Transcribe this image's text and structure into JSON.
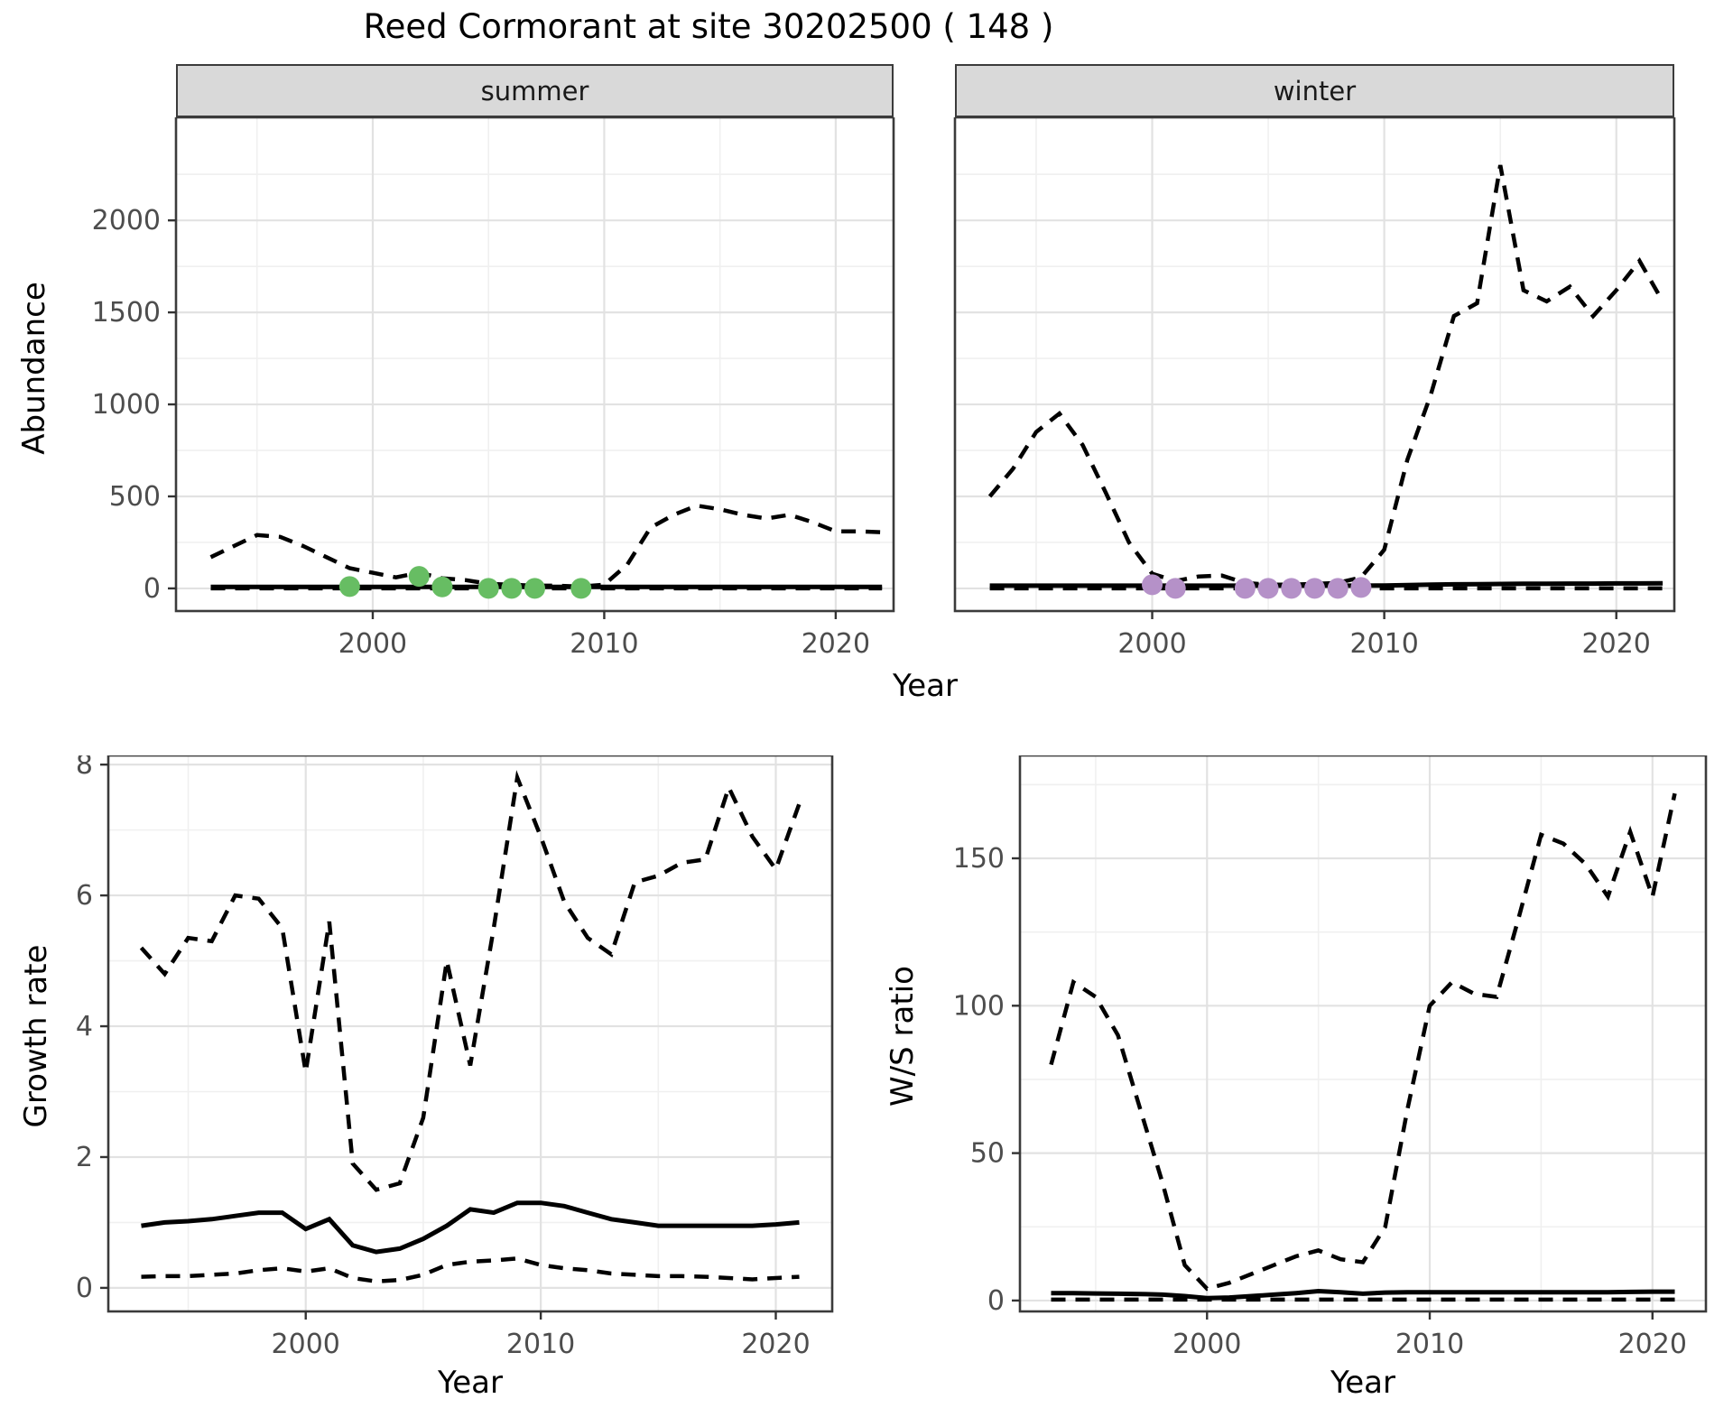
{
  "figure": {
    "title": "Reed Cormorant at site 30202500 ( 148 )",
    "background_color": "#ffffff",
    "line_color": "#000000",
    "grid_major_color": "#e2e2e2",
    "grid_minor_color": "#f0f0f0",
    "panel_border_color": "#3b3b3b",
    "strip_fill_color": "#d9d9d9",
    "tick_label_color": "#4d4d4d",
    "summer_point_color": "#67bd63",
    "winter_point_color": "#b591c8"
  },
  "chart_data": [
    {
      "id": "abundance-summer",
      "type": "line",
      "facet_label": "summer",
      "xlabel": "Year",
      "ylabel": "Abundance",
      "xlim": [
        1991.5,
        2022.5
      ],
      "ylim": [
        -123,
        2560
      ],
      "xticks": [
        2000,
        2010,
        2020
      ],
      "yticks": [
        0,
        500,
        1000,
        1500,
        2000
      ],
      "grid": true,
      "legend": "none",
      "x": [
        1993,
        1994,
        1995,
        1996,
        1997,
        1998,
        1999,
        2000,
        2001,
        2002,
        2003,
        2004,
        2005,
        2006,
        2007,
        2008,
        2009,
        2010,
        2011,
        2012,
        2013,
        2014,
        2015,
        2016,
        2017,
        2018,
        2019,
        2020,
        2021,
        2022
      ],
      "series": [
        {
          "name": "upper-95ci",
          "style": "dashed",
          "values": [
            170,
            230,
            290,
            280,
            230,
            170,
            110,
            85,
            60,
            85,
            55,
            45,
            25,
            20,
            15,
            15,
            10,
            20,
            130,
            330,
            400,
            450,
            430,
            400,
            380,
            400,
            360,
            310,
            310,
            305
          ]
        },
        {
          "name": "median",
          "style": "solid",
          "values": [
            8,
            8,
            8,
            8,
            8,
            8,
            8,
            8,
            8,
            8,
            8,
            8,
            8,
            8,
            8,
            8,
            8,
            8,
            8,
            8,
            8,
            8,
            8,
            8,
            8,
            8,
            8,
            8,
            8,
            8
          ]
        },
        {
          "name": "lower-95ci",
          "style": "dashed",
          "values": [
            0,
            0,
            0,
            0,
            0,
            0,
            0,
            0,
            0,
            0,
            0,
            0,
            0,
            0,
            0,
            0,
            0,
            0,
            0,
            0,
            0,
            0,
            0,
            0,
            0,
            0,
            0,
            0,
            0,
            0
          ]
        }
      ],
      "points": {
        "name": "observed-counts",
        "color_key": "summer_point_color",
        "x": [
          1999,
          2002,
          2003,
          2005,
          2006,
          2007,
          2009
        ],
        "y": [
          10,
          65,
          8,
          0,
          0,
          0,
          0
        ]
      }
    },
    {
      "id": "abundance-winter",
      "type": "line",
      "facet_label": "winter",
      "xlabel": "Year",
      "ylabel": "Abundance",
      "xlim": [
        1991.5,
        2022.5
      ],
      "ylim": [
        -123,
        2560
      ],
      "xticks": [
        2000,
        2010,
        2020
      ],
      "yticks": [
        0,
        500,
        1000,
        1500,
        2000
      ],
      "grid": true,
      "legend": "none",
      "x": [
        1993,
        1994,
        1995,
        1996,
        1997,
        1998,
        1999,
        2000,
        2001,
        2002,
        2003,
        2004,
        2005,
        2006,
        2007,
        2008,
        2009,
        2010,
        2011,
        2012,
        2013,
        2014,
        2015,
        2016,
        2017,
        2018,
        2019,
        2020,
        2021,
        2022
      ],
      "series": [
        {
          "name": "upper-95ci",
          "style": "dashed",
          "values": [
            500,
            650,
            850,
            950,
            780,
            520,
            250,
            80,
            40,
            65,
            70,
            30,
            20,
            20,
            25,
            30,
            60,
            210,
            700,
            1050,
            1480,
            1550,
            2300,
            1620,
            1560,
            1640,
            1480,
            1620,
            1780,
            1560
          ]
        },
        {
          "name": "median",
          "style": "solid",
          "values": [
            15,
            15,
            15,
            15,
            15,
            15,
            15,
            15,
            15,
            15,
            15,
            15,
            15,
            15,
            15,
            15,
            15,
            16,
            18,
            20,
            22,
            23,
            24,
            25,
            25,
            26,
            26,
            27,
            27,
            28
          ]
        },
        {
          "name": "lower-95ci",
          "style": "dashed",
          "values": [
            0,
            0,
            0,
            0,
            0,
            0,
            0,
            0,
            0,
            0,
            0,
            0,
            0,
            0,
            0,
            0,
            0,
            0,
            0,
            0,
            0,
            0,
            0,
            0,
            0,
            0,
            0,
            0,
            0,
            0
          ]
        }
      ],
      "points": {
        "name": "observed-counts",
        "color_key": "winter_point_color",
        "x": [
          2000,
          2001,
          2004,
          2005,
          2006,
          2007,
          2008,
          2009
        ],
        "y": [
          20,
          0,
          0,
          0,
          0,
          0,
          0,
          5
        ]
      }
    },
    {
      "id": "growth-rate",
      "type": "line",
      "facet_label": "",
      "xlabel": "Year",
      "ylabel": "Growth rate",
      "xlim": [
        1991.6,
        2022.4
      ],
      "ylim": [
        -0.36,
        8.14
      ],
      "xticks": [
        2000,
        2010,
        2020
      ],
      "yticks": [
        0,
        2,
        4,
        6,
        8
      ],
      "grid": true,
      "legend": "none",
      "x": [
        1993,
        1994,
        1995,
        1996,
        1997,
        1998,
        1999,
        2000,
        2001,
        2002,
        2003,
        2004,
        2005,
        2006,
        2007,
        2008,
        2009,
        2010,
        2011,
        2012,
        2013,
        2014,
        2015,
        2016,
        2017,
        2018,
        2019,
        2020,
        2021
      ],
      "series": [
        {
          "name": "upper-95ci",
          "style": "dashed",
          "values": [
            5.2,
            4.8,
            5.35,
            5.3,
            6.0,
            5.95,
            5.5,
            3.3,
            5.6,
            1.9,
            1.5,
            1.6,
            2.6,
            5.0,
            3.4,
            5.5,
            7.8,
            6.9,
            5.9,
            5.35,
            5.1,
            6.2,
            6.3,
            6.5,
            6.55,
            7.65,
            6.9,
            6.4,
            7.4
          ]
        },
        {
          "name": "median",
          "style": "solid",
          "values": [
            0.95,
            1.0,
            1.02,
            1.05,
            1.1,
            1.15,
            1.15,
            0.9,
            1.05,
            0.65,
            0.55,
            0.6,
            0.75,
            0.95,
            1.2,
            1.15,
            1.3,
            1.3,
            1.25,
            1.15,
            1.05,
            1.0,
            0.95,
            0.95,
            0.95,
            0.95,
            0.95,
            0.97,
            1.0
          ]
        },
        {
          "name": "lower-95ci",
          "style": "dashed",
          "values": [
            0.17,
            0.18,
            0.18,
            0.2,
            0.22,
            0.27,
            0.3,
            0.25,
            0.3,
            0.15,
            0.1,
            0.12,
            0.2,
            0.35,
            0.4,
            0.42,
            0.45,
            0.35,
            0.3,
            0.27,
            0.22,
            0.2,
            0.18,
            0.18,
            0.17,
            0.15,
            0.13,
            0.15,
            0.17
          ]
        }
      ],
      "points": null
    },
    {
      "id": "ws-ratio",
      "type": "line",
      "facet_label": "",
      "xlabel": "Year",
      "ylabel": "W/S ratio",
      "xlim": [
        1991.6,
        2022.4
      ],
      "ylim": [
        -3.7,
        184.9
      ],
      "xticks": [
        2000,
        2010,
        2020
      ],
      "yticks": [
        0,
        50,
        100,
        150
      ],
      "grid": true,
      "legend": "none",
      "x": [
        1993,
        1994,
        1995,
        1996,
        1997,
        1998,
        1999,
        2000,
        2001,
        2002,
        2003,
        2004,
        2005,
        2006,
        2007,
        2008,
        2009,
        2010,
        2011,
        2012,
        2013,
        2014,
        2015,
        2016,
        2017,
        2018,
        2019,
        2020,
        2021
      ],
      "series": [
        {
          "name": "upper-95ci",
          "style": "dashed",
          "values": [
            80,
            108,
            103,
            90,
            65,
            40,
            12,
            4,
            6,
            9,
            12,
            15,
            17,
            14,
            13,
            25,
            65,
            100,
            108,
            104,
            103,
            130,
            158,
            155,
            148,
            137,
            159,
            137,
            172
          ]
        },
        {
          "name": "median",
          "style": "solid",
          "values": [
            2.5,
            2.5,
            2.4,
            2.3,
            2.2,
            2.0,
            1.5,
            0.8,
            1.0,
            1.5,
            2.0,
            2.5,
            3.2,
            2.8,
            2.3,
            2.7,
            2.8,
            2.8,
            2.8,
            2.8,
            2.8,
            2.8,
            2.8,
            2.8,
            2.8,
            2.8,
            2.9,
            3.0,
            3.0
          ]
        },
        {
          "name": "lower-95ci",
          "style": "dashed",
          "values": [
            0.3,
            0.3,
            0.3,
            0.3,
            0.3,
            0.3,
            0.3,
            0.3,
            0.3,
            0.3,
            0.3,
            0.3,
            0.3,
            0.3,
            0.3,
            0.3,
            0.3,
            0.3,
            0.3,
            0.3,
            0.3,
            0.3,
            0.3,
            0.3,
            0.3,
            0.3,
            0.3,
            0.3,
            0.3
          ]
        }
      ],
      "points": null
    }
  ]
}
